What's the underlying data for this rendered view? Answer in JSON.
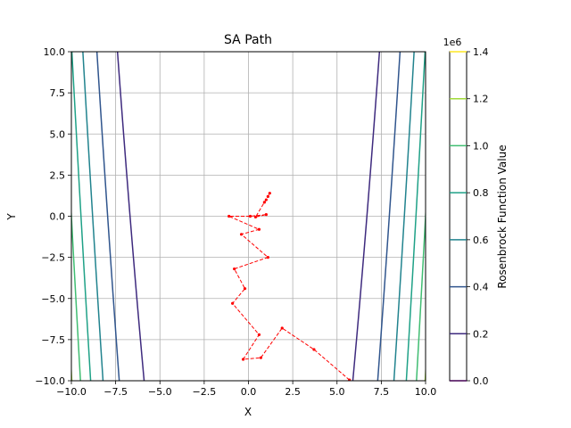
{
  "chart_data": [
    {
      "type": "contour",
      "title": "SA Path",
      "xlabel": "X",
      "ylabel": "Y",
      "xlim": [
        -10,
        10
      ],
      "ylim": [
        -10,
        10
      ],
      "x_ticks": [
        -10,
        -7.5,
        -5,
        -2.5,
        0,
        2.5,
        5,
        7.5,
        10
      ],
      "y_ticks": [
        -10,
        -7.5,
        -5,
        -2.5,
        0,
        2.5,
        5,
        7.5,
        10
      ],
      "x_tick_labels": [
        "−10.0",
        "−7.5",
        "−5.0",
        "−2.5",
        "0.0",
        "2.5",
        "5.0",
        "7.5",
        "10.0"
      ],
      "y_tick_labels": [
        "−10.0",
        "−7.5",
        "−5.0",
        "−2.5",
        "0.0",
        "2.5",
        "5.0",
        "7.5",
        "10.0"
      ],
      "grid": true,
      "function": "rosenbrock",
      "contour_levels": [
        200000,
        400000,
        600000,
        800000,
        1000000,
        1200000
      ],
      "contour_colors": [
        "#3e2a7e",
        "#30558d",
        "#21838e",
        "#1fa187",
        "#40bd72",
        "#a0da39"
      ],
      "path_color": "#ff0000",
      "path": [
        [
          5.7,
          -9.95
        ],
        [
          3.7,
          -8.1
        ],
        [
          1.9,
          -6.8
        ],
        [
          0.7,
          -8.6
        ],
        [
          -0.3,
          -8.7
        ],
        [
          0.6,
          -7.2
        ],
        [
          -0.9,
          -5.3
        ],
        [
          -0.2,
          -4.4
        ],
        [
          -0.8,
          -3.2
        ],
        [
          1.1,
          -2.5
        ],
        [
          -0.4,
          -1.1
        ],
        [
          0.6,
          -0.8
        ],
        [
          -1.1,
          0.0
        ],
        [
          0.1,
          0.0
        ],
        [
          1.0,
          0.1
        ],
        [
          0.4,
          -0.05
        ],
        [
          0.9,
          0.85
        ],
        [
          1.0,
          1.0
        ],
        [
          1.1,
          1.2
        ],
        [
          1.2,
          1.4
        ]
      ]
    },
    {
      "type": "colorbar",
      "label": "Rosenbrock Function Value",
      "multiplier": "1e6",
      "range": [
        0,
        1.4
      ],
      "ticks": [
        0,
        0.2,
        0.4,
        0.6,
        0.8,
        1.0,
        1.2,
        1.4
      ],
      "tick_labels": [
        "0.0",
        "0.2",
        "0.4",
        "0.6",
        "0.8",
        "1.0",
        "1.2",
        "1.4"
      ],
      "tick_colors": [
        "#440154",
        "#3e2a7e",
        "#30558d",
        "#21838e",
        "#1fa187",
        "#40bd72",
        "#a0da39",
        "#fde725"
      ]
    }
  ]
}
